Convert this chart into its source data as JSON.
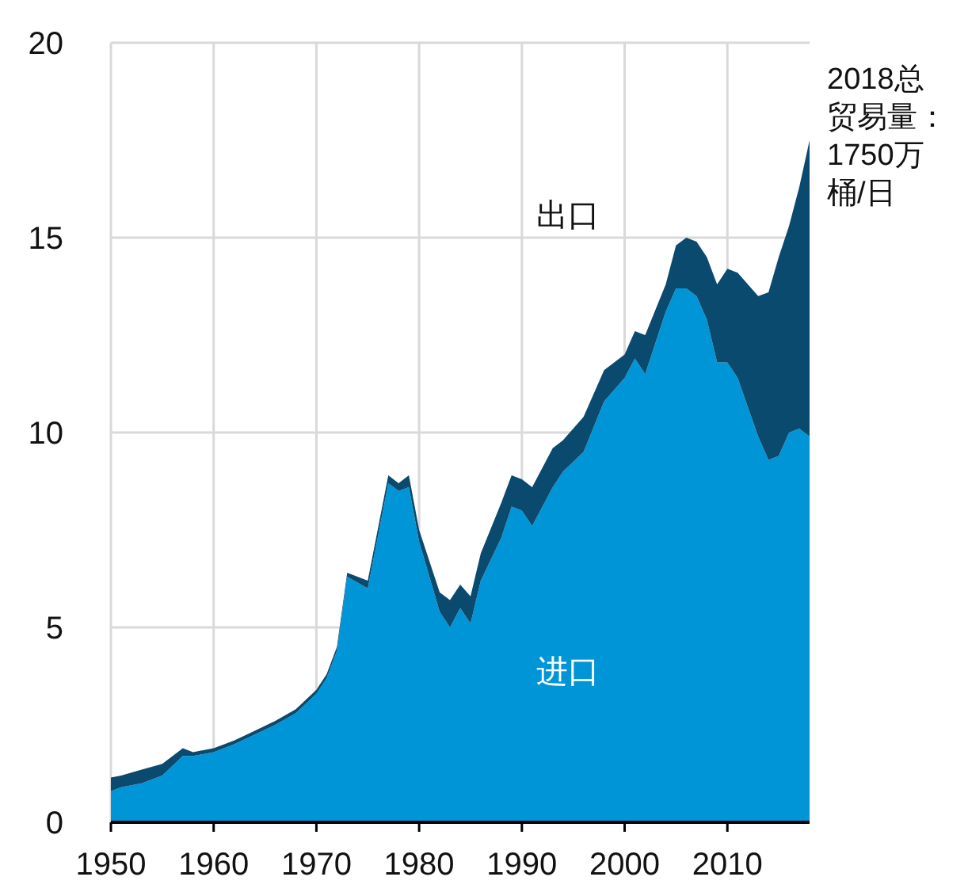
{
  "chart_data": {
    "type": "area",
    "stacked": true,
    "x": [
      1950,
      1951,
      1953,
      1955,
      1957,
      1958,
      1960,
      1962,
      1964,
      1966,
      1968,
      1970,
      1971,
      1972,
      1973,
      1975,
      1977,
      1978,
      1979,
      1980,
      1982,
      1983,
      1984,
      1985,
      1986,
      1988,
      1989,
      1990,
      1991,
      1993,
      1994,
      1996,
      1998,
      2000,
      2001,
      2002,
      2004,
      2005,
      2006,
      2007,
      2008,
      2009,
      2010,
      2011,
      2013,
      2014,
      2015,
      2016,
      2017,
      2018
    ],
    "series": [
      {
        "name": "进口",
        "color": "#0095d6",
        "values": [
          0.8,
          0.9,
          1.0,
          1.2,
          1.7,
          1.7,
          1.8,
          2.0,
          2.25,
          2.5,
          2.8,
          3.3,
          3.7,
          4.4,
          6.3,
          6.0,
          8.7,
          8.5,
          8.6,
          7.2,
          5.4,
          5.0,
          5.5,
          5.1,
          6.2,
          7.3,
          8.1,
          8.0,
          7.6,
          8.6,
          9.0,
          9.5,
          10.8,
          11.4,
          11.9,
          11.5,
          13.1,
          13.7,
          13.7,
          13.5,
          12.9,
          11.8,
          11.8,
          11.4,
          9.9,
          9.3,
          9.4,
          10.0,
          10.1,
          9.9
        ]
      },
      {
        "name": "出口",
        "color": "#0a4a6e",
        "values": [
          0.35,
          0.3,
          0.35,
          0.3,
          0.2,
          0.1,
          0.1,
          0.1,
          0.1,
          0.1,
          0.1,
          0.1,
          0.1,
          0.1,
          0.1,
          0.2,
          0.2,
          0.2,
          0.3,
          0.3,
          0.5,
          0.7,
          0.6,
          0.7,
          0.7,
          0.9,
          0.8,
          0.8,
          1.0,
          1.0,
          0.8,
          0.9,
          0.8,
          0.6,
          0.7,
          1.0,
          0.7,
          1.1,
          1.3,
          1.4,
          1.6,
          2.0,
          2.4,
          2.7,
          3.6,
          4.3,
          5.1,
          5.3,
          6.2,
          7.6
        ]
      }
    ],
    "xlim": [
      1950,
      2018
    ],
    "xticks": [
      1950,
      1960,
      1970,
      1980,
      1990,
      2000,
      2010
    ],
    "ylim": [
      0,
      20
    ],
    "yticks": [
      0,
      5,
      10,
      15,
      20
    ],
    "grid": true,
    "annotations": [
      {
        "text": "2018总贸易量：1750万桶/日",
        "x": 2018,
        "y": 17.5
      }
    ]
  }
}
